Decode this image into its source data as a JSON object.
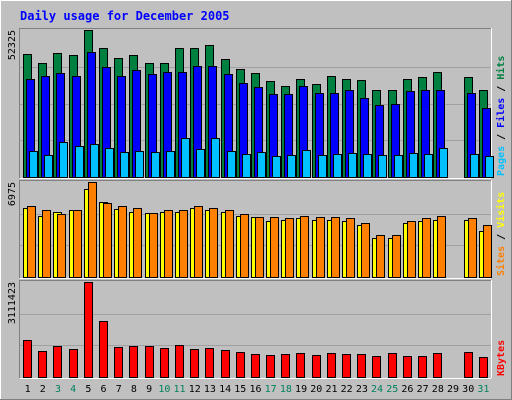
{
  "chart_data": {
    "type": "bar",
    "title": "Daily usage for December 2005",
    "categories": [
      "1",
      "2",
      "3",
      "4",
      "5",
      "6",
      "7",
      "8",
      "9",
      "10",
      "11",
      "12",
      "13",
      "14",
      "15",
      "16",
      "17",
      "18",
      "19",
      "20",
      "21",
      "22",
      "23",
      "24",
      "25",
      "26",
      "27",
      "28",
      "29",
      "30",
      "31"
    ],
    "weekend_days": [
      "3",
      "4",
      "10",
      "11",
      "17",
      "18",
      "24",
      "25",
      "31"
    ],
    "panels": [
      {
        "id": "hits-files-pages",
        "ymax_label": "52325",
        "ymax": 52325,
        "side_label": [
          "Pages",
          "Files",
          "Hits"
        ],
        "series": [
          {
            "name": "Hits",
            "color": "#008040",
            "values": [
              43700,
              40500,
              44000,
              43500,
              52325,
              46000,
              42500,
              43500,
              40500,
              40500,
              45800,
              45800,
              47000,
              42000,
              38500,
              37000,
              34000,
              32500,
              35000,
              33000,
              36000,
              35000,
              34500,
              31000,
              31000,
              35000,
              35500,
              37500,
              null,
              35500,
              31000
            ]
          },
          {
            "name": "Files",
            "color": "#0000ff",
            "values": [
              35000,
              36000,
              37000,
              36000,
              44500,
              39000,
              36000,
              38000,
              36500,
              37500,
              37500,
              39500,
              39500,
              36500,
              33500,
              32000,
              29500,
              29500,
              32500,
              30000,
              30000,
              31000,
              28000,
              25500,
              26000,
              30500,
              31000,
              31000,
              null,
              30000,
              24500
            ]
          },
          {
            "name": "Pages",
            "color": "#00c0ff",
            "values": [
              9200,
              8000,
              12300,
              11000,
              11600,
              10500,
              9000,
              9300,
              8800,
              9300,
              14000,
              9800,
              14000,
              9400,
              8200,
              8800,
              7500,
              7900,
              9700,
              7800,
              8100,
              8500,
              8200,
              8000,
              7900,
              8400,
              8100,
              10400,
              null,
              8300,
              7600
            ]
          }
        ],
        "side_colors": [
          "#00c0ff",
          "#0000ff",
          "#008040"
        ]
      },
      {
        "id": "visits-sites",
        "ymax_label": "6975",
        "ymax": 6975,
        "side_label": [
          "Sites",
          "Visits"
        ],
        "series": [
          {
            "name": "Visits",
            "color": "#ffff00",
            "values": [
              5100,
              4500,
              4800,
              4900,
              6450,
              5500,
              5000,
              4800,
              4700,
              4800,
              4800,
              5100,
              4900,
              4800,
              4500,
              4400,
              4100,
              4200,
              4300,
              4200,
              4200,
              4100,
              3800,
              2900,
              2900,
              3950,
              4100,
              4200,
              null,
              4150,
              3400
            ]
          },
          {
            "name": "Sites",
            "color": "#ff8000",
            "values": [
              5200,
              4900,
              4600,
              4900,
              6975,
              5400,
              5200,
              5100,
              4700,
              4900,
              4900,
              5200,
              5100,
              4900,
              4600,
              4400,
              4400,
              4300,
              4500,
              4400,
              4400,
              4300,
              4000,
              3100,
              3100,
              4100,
              4300,
              4500,
              null,
              4300,
              3800
            ]
          }
        ],
        "side_colors": [
          "#ff8000",
          "#ffff00"
        ]
      },
      {
        "id": "kbytes",
        "ymax_label": "3111423",
        "ymax": 3111423,
        "side_label": [
          "KBytes"
        ],
        "series": [
          {
            "name": "KBytes",
            "color": "#ff0000",
            "values": [
              1200000,
              860000,
              1020000,
              930000,
              3111423,
              1830000,
              980000,
              1000000,
              1020000,
              950000,
              1050000,
              930000,
              940000,
              900000,
              820000,
              760000,
              710000,
              740000,
              790000,
              710000,
              800000,
              740000,
              740000,
              700000,
              790000,
              700000,
              700000,
              790000,
              null,
              810000,
              650000
            ]
          }
        ],
        "side_colors": [
          "#ff0000"
        ]
      }
    ]
  },
  "colors": {
    "background": "#c0c0c0",
    "title": "#0000ff",
    "border_light": "#ffffff",
    "border_dark": "#808080",
    "text": "#000000",
    "weekend_text": "#00805c",
    "separator": "#cccccc"
  }
}
